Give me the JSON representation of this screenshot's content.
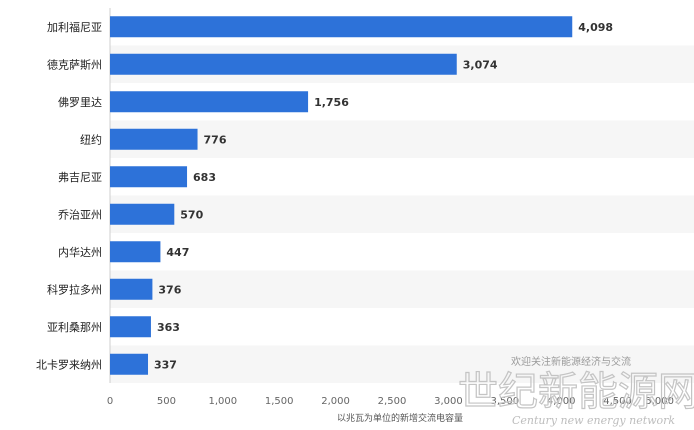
{
  "chart_data": {
    "type": "bar",
    "orientation": "horizontal",
    "categories": [
      "加利福尼亚",
      "德克萨斯州",
      "佛罗里达",
      "纽约",
      "弗吉尼亚",
      "乔治亚州",
      "内华达州",
      "科罗拉多州",
      "亚利桑那州",
      "北卡罗来纳州"
    ],
    "values": [
      4098,
      3074,
      1756,
      776,
      683,
      570,
      447,
      376,
      363,
      337
    ],
    "value_labels": [
      "4,098",
      "3,074",
      "1,756",
      "776",
      "683",
      "570",
      "447",
      "376",
      "363",
      "337"
    ],
    "xlabel": "以兆瓦为单位的新增交流电容量",
    "xlim": [
      0,
      5000
    ],
    "xticks": [
      0,
      500,
      1000,
      1500,
      2000,
      2500,
      3000,
      3500,
      4000,
      4500,
      5000
    ],
    "xtick_labels": [
      "0",
      "500",
      "1,000",
      "1,500",
      "2,000",
      "2,500",
      "3,000",
      "3,500",
      "4,000",
      "4,500",
      "5,000"
    ],
    "bar_color": "#2d72d9",
    "row_band_color": "#f6f6f6",
    "grid": false
  },
  "watermark": {
    "top_text": "欢迎关注新能源经济与交流",
    "main_text": "世纪新能源网",
    "sub_text": "Century new energy network"
  }
}
